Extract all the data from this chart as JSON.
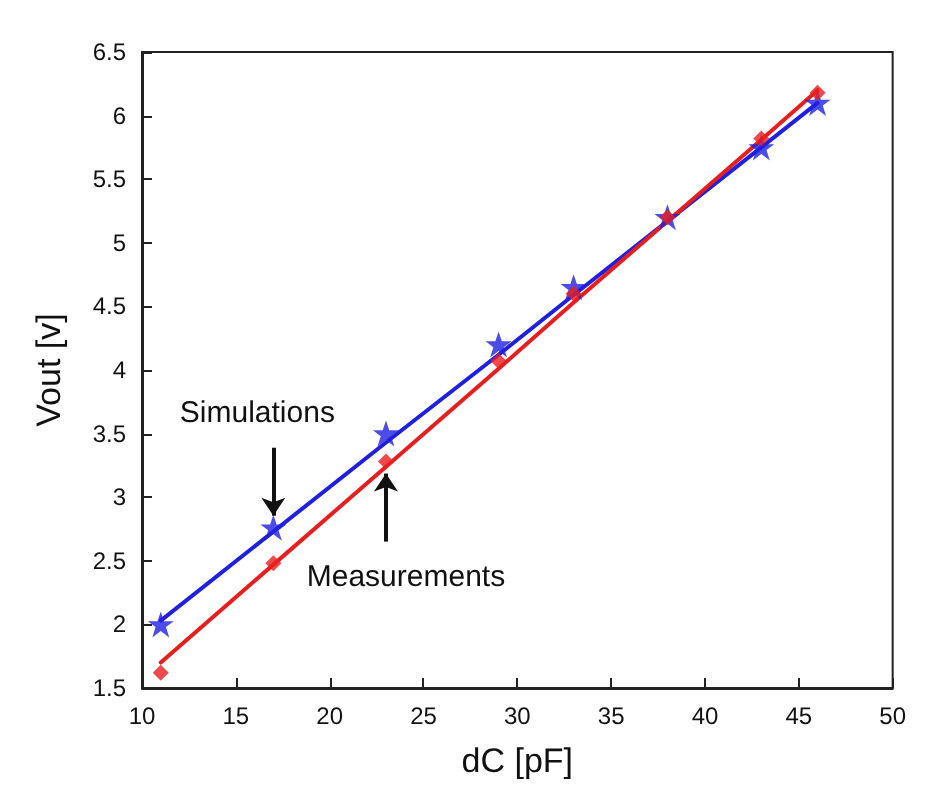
{
  "chart_data": {
    "type": "scatter",
    "xlabel": "dC [pF]",
    "ylabel": "Vout [v]",
    "x": [
      11,
      17,
      23,
      29,
      33,
      38,
      43,
      46
    ],
    "series": [
      {
        "color": "#1f1fe0",
        "marker": "star",
        "values": [
          2.0,
          2.76,
          3.5,
          4.2,
          4.65,
          5.2,
          5.75,
          6.1
        ]
      },
      {
        "color": "#e81e1e",
        "marker": "diamond",
        "values": [
          1.62,
          2.48,
          3.28,
          4.07,
          4.6,
          5.2,
          5.82,
          6.18
        ]
      },
      {
        "type": "line",
        "color": "#1f1fe0",
        "values": [
          2.03,
          2.73,
          3.43,
          4.12,
          4.59,
          5.17,
          5.75,
          6.1
        ]
      },
      {
        "type": "line",
        "color": "#e81e1e",
        "values": [
          1.7,
          2.47,
          3.24,
          4.01,
          4.53,
          5.17,
          5.81,
          6.2
        ]
      }
    ],
    "annotations": [
      {
        "text": "Simulations",
        "x": 17,
        "y": 2.76
      },
      {
        "text": "Measurements",
        "x": 23,
        "y": 3.28
      }
    ],
    "xlim": [
      10,
      50
    ],
    "xticks": [
      10,
      15,
      20,
      25,
      30,
      35,
      40,
      45,
      50
    ],
    "ylim": [
      1.5,
      6.5
    ],
    "yticks": [
      1.5,
      2,
      2.5,
      3,
      3.5,
      4,
      4.5,
      5,
      5.5,
      6,
      6.5
    ],
    "grid": false,
    "line_style": "solid"
  }
}
